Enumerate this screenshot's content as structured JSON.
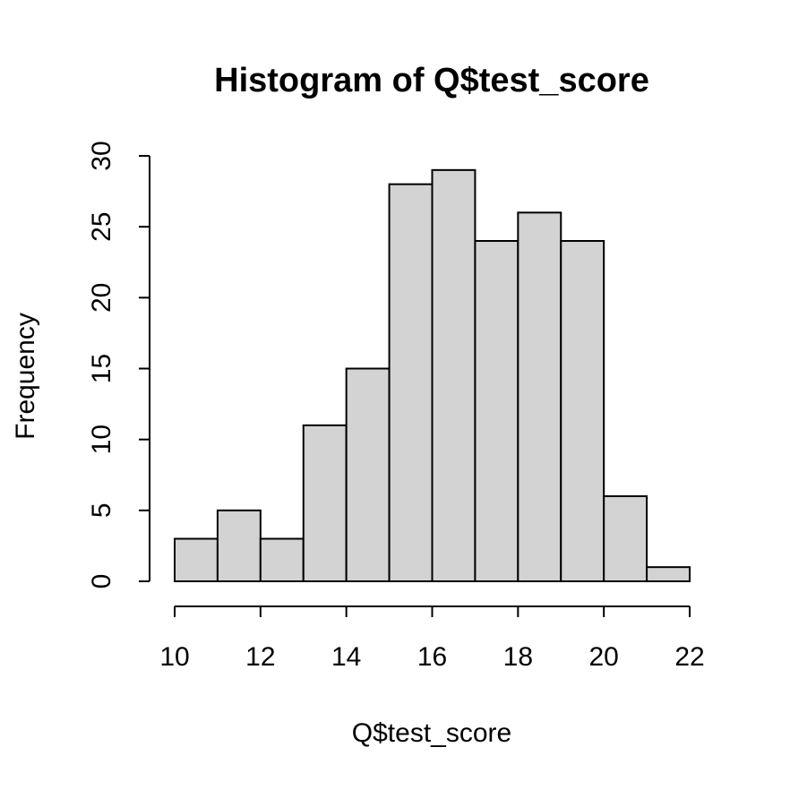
{
  "chart_data": {
    "type": "bar",
    "title": "Histogram of Q$test_score",
    "xlabel": "Q$test_score",
    "ylabel": "Frequency",
    "bins": [
      {
        "start": 10,
        "end": 11,
        "count": 3
      },
      {
        "start": 11,
        "end": 12,
        "count": 5
      },
      {
        "start": 12,
        "end": 13,
        "count": 3
      },
      {
        "start": 13,
        "end": 14,
        "count": 11
      },
      {
        "start": 14,
        "end": 15,
        "count": 15
      },
      {
        "start": 15,
        "end": 16,
        "count": 28
      },
      {
        "start": 16,
        "end": 17,
        "count": 29
      },
      {
        "start": 17,
        "end": 18,
        "count": 24
      },
      {
        "start": 18,
        "end": 19,
        "count": 26
      },
      {
        "start": 19,
        "end": 20,
        "count": 24
      },
      {
        "start": 20,
        "end": 21,
        "count": 6
      },
      {
        "start": 21,
        "end": 22,
        "count": 1
      }
    ],
    "xlim": [
      10,
      22
    ],
    "ylim": [
      0,
      30
    ],
    "xticks": [
      10,
      12,
      14,
      16,
      18,
      20,
      22
    ],
    "yticks": [
      0,
      5,
      10,
      15,
      20,
      25,
      30
    ],
    "bar_color": "#d3d3d3",
    "grid": false,
    "legend": "none"
  }
}
